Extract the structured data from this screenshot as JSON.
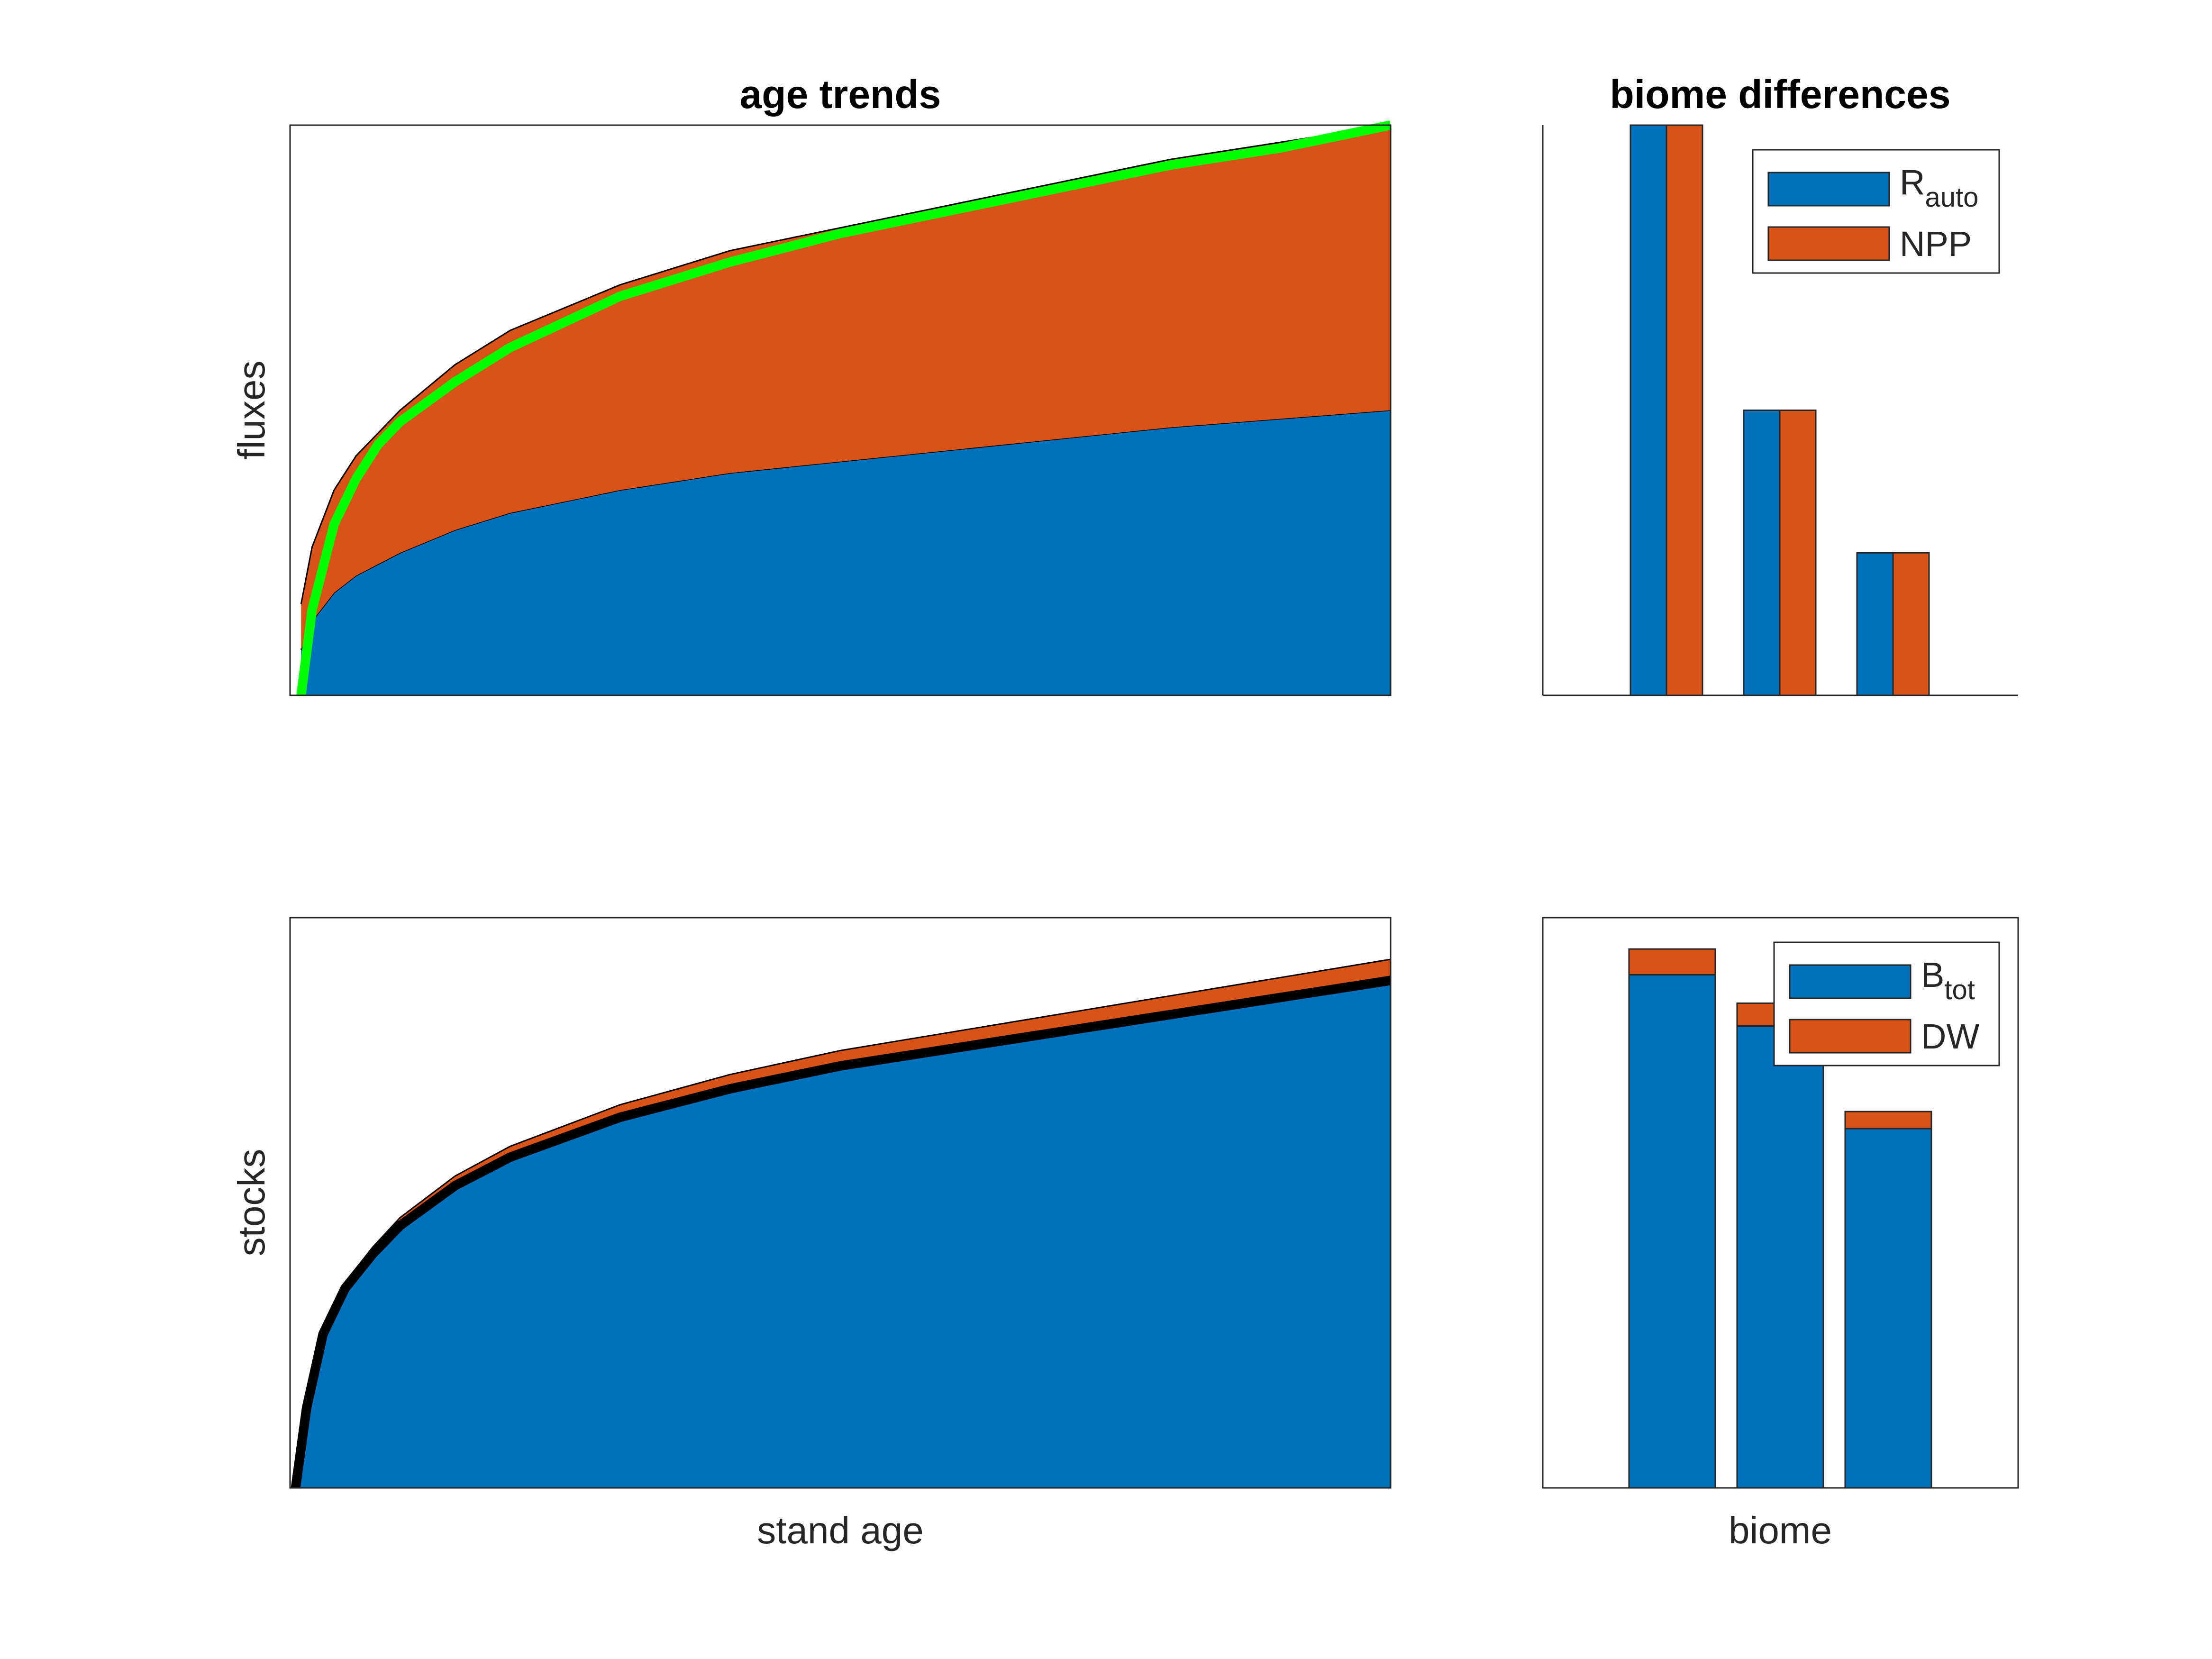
{
  "colors": {
    "blue": "#0072BD",
    "orange": "#D95319",
    "green": "#00FF00",
    "black": "#000000"
  },
  "chart_data": [
    {
      "id": "fluxes",
      "type": "area",
      "title": "age trends",
      "xlabel": "",
      "ylabel": "fluxes",
      "xlim": [
        0,
        1
      ],
      "ylim": [
        0,
        1
      ],
      "grid": false,
      "ticks": false,
      "x": [
        0.01,
        0.02,
        0.04,
        0.06,
        0.08,
        0.1,
        0.15,
        0.2,
        0.3,
        0.4,
        0.5,
        0.6,
        0.7,
        0.8,
        0.9,
        1.0
      ],
      "series": [
        {
          "values": [
            0.08,
            0.13,
            0.18,
            0.21,
            0.23,
            0.25,
            0.29,
            0.32,
            0.36,
            0.39,
            0.41,
            0.43,
            0.45,
            0.47,
            0.485,
            0.5
          ],
          "color": "blue"
        },
        {
          "values": [
            0.08,
            0.13,
            0.18,
            0.21,
            0.23,
            0.25,
            0.29,
            0.32,
            0.36,
            0.39,
            0.41,
            0.43,
            0.45,
            0.47,
            0.485,
            0.5
          ],
          "color": "orange"
        }
      ],
      "total_line": {
        "values": [
          0.0,
          0.15,
          0.3,
          0.38,
          0.44,
          0.48,
          0.55,
          0.61,
          0.7,
          0.76,
          0.81,
          0.85,
          0.89,
          0.93,
          0.96,
          1.0
        ],
        "color": "green"
      }
    },
    {
      "id": "flux-biomes",
      "type": "bar",
      "title": "biome differences",
      "xlabel": "",
      "ylabel": "",
      "ylim": [
        0,
        1
      ],
      "grid": false,
      "ticks": false,
      "categories": [
        "",
        "",
        ""
      ],
      "series": [
        {
          "name": "Rauto",
          "name_main": "R",
          "name_sub": "auto",
          "values": [
            1.0,
            0.5,
            0.25
          ],
          "color": "blue"
        },
        {
          "name": "NPP",
          "name_main": "NPP",
          "name_sub": "",
          "values": [
            1.0,
            0.5,
            0.25
          ],
          "color": "orange"
        }
      ],
      "legend": "top-right"
    },
    {
      "id": "stocks",
      "type": "area",
      "title": "",
      "xlabel": "stand age",
      "ylabel": "stocks",
      "xlim": [
        0,
        1
      ],
      "ylim": [
        0,
        1
      ],
      "grid": false,
      "ticks": false,
      "x": [
        0.005,
        0.015,
        0.03,
        0.05,
        0.075,
        0.1,
        0.15,
        0.2,
        0.3,
        0.4,
        0.5,
        0.6,
        0.7,
        0.8,
        0.9,
        1.0
      ],
      "series": [
        {
          "values": [
            0.0,
            0.14,
            0.27,
            0.35,
            0.41,
            0.46,
            0.53,
            0.58,
            0.65,
            0.7,
            0.74,
            0.77,
            0.8,
            0.83,
            0.86,
            0.89
          ],
          "color": "blue"
        },
        {
          "values": [
            0.0,
            0.004,
            0.007,
            0.01,
            0.012,
            0.014,
            0.017,
            0.019,
            0.022,
            0.025,
            0.027,
            0.029,
            0.031,
            0.033,
            0.035,
            0.037
          ],
          "color": "orange"
        }
      ],
      "total_line": {
        "values": [
          0.0,
          0.14,
          0.27,
          0.35,
          0.41,
          0.46,
          0.53,
          0.58,
          0.65,
          0.7,
          0.74,
          0.77,
          0.8,
          0.83,
          0.86,
          0.89
        ],
        "color": "black"
      }
    },
    {
      "id": "stock-biomes",
      "type": "bar",
      "stacked": true,
      "title": "",
      "xlabel": "biome",
      "ylabel": "",
      "ylim": [
        0,
        1
      ],
      "grid": false,
      "ticks": false,
      "categories": [
        "",
        "",
        ""
      ],
      "series": [
        {
          "name": "Btot",
          "name_main": "B",
          "name_sub": "tot",
          "values": [
            0.9,
            0.81,
            0.63
          ],
          "color": "blue"
        },
        {
          "name": "DW",
          "name_main": "DW",
          "name_sub": "",
          "values": [
            0.045,
            0.04,
            0.03
          ],
          "color": "orange"
        }
      ],
      "legend": "top-right"
    }
  ]
}
